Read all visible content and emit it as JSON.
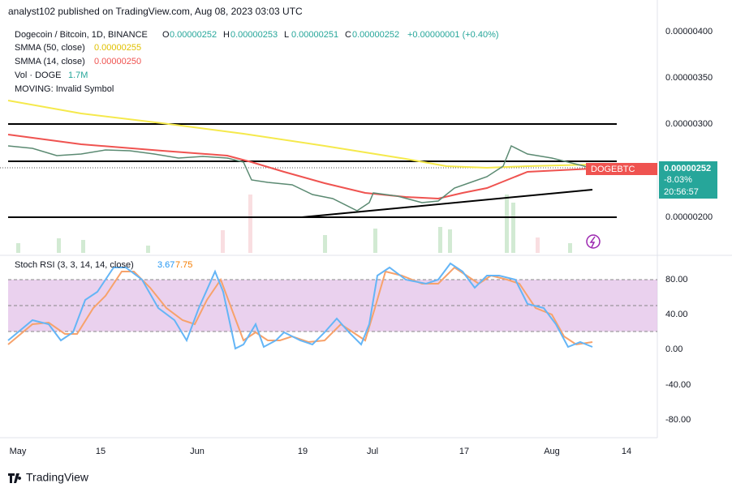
{
  "header": {
    "publisher": "analyst102 published on TradingView.com, Aug 08, 2023 03:03 UTC"
  },
  "legend": {
    "symbol": "Dogecoin / Bitcoin, 1D, BINANCE",
    "ohlc": [
      {
        "label": "O",
        "value": "0.00000252"
      },
      {
        "label": "H",
        "value": "0.00000253"
      },
      {
        "label": "L",
        "value": "0.00000251"
      },
      {
        "label": "C",
        "value": "0.00000252"
      }
    ],
    "change": "+0.00000001 (+0.40%)"
  },
  "indicators": {
    "sma50": {
      "label": "SMMA (50, close)",
      "value": "0.00000255"
    },
    "sma14": {
      "label": "SMMA (14, close)",
      "value": "0.00000250"
    },
    "vol": {
      "label": "Vol · DOGE",
      "value": "1.7M"
    },
    "moving": {
      "label": "MOVING: Invalid Symbol"
    }
  },
  "price_axis": [
    "0.00000400",
    "0.00000350",
    "0.00000300",
    "0.00000200"
  ],
  "price_tag": {
    "symbol": "DOGEBTC",
    "price": "0.00000252",
    "change": "-8.03%",
    "countdown": "20:56:57"
  },
  "stoch": {
    "label": "Stoch RSI (3, 3, 14, 14, close)",
    "k": "3.67",
    "d": "7.75",
    "axis": [
      "80.00",
      "40.00",
      "0.00",
      "-40.00",
      "-80.00"
    ]
  },
  "time_axis": [
    "May",
    "15",
    "Jun",
    "19",
    "Jul",
    "17",
    "Aug",
    "14"
  ],
  "footer": {
    "brand": "TradingView"
  }
}
